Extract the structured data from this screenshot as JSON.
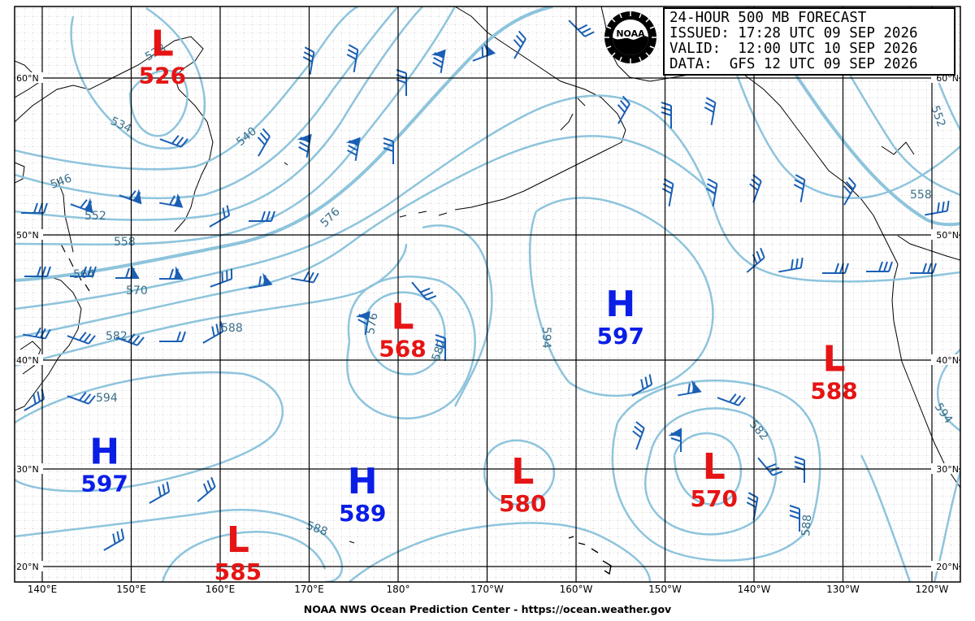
{
  "header": {
    "lines": [
      "24-HOUR 500 MB FORECAST",
      "ISSUED: 17:28 UTC 09 SEP 2026",
      "VALID:  12:00 UTC 10 SEP 2026",
      "DATA:  GFS 12 UTC 09 SEP 2026"
    ]
  },
  "logo": {
    "text": "NOAA"
  },
  "footer": "NOAA NWS Ocean Prediction Center - https://ocean.weather.gov",
  "axes": {
    "lon_labels": [
      "140°E",
      "150°E",
      "160°E",
      "170°E",
      "180°",
      "170°W",
      "160°W",
      "150°W",
      "140°W",
      "130°W",
      "120°W"
    ],
    "lat_labels": [
      "60°N",
      "50°N",
      "40°N",
      "30°N",
      "20°N"
    ]
  },
  "pressure_centers": [
    {
      "type": "L",
      "value": "526",
      "lon": 153.5,
      "lat": 61.5
    },
    {
      "type": "L",
      "value": "568",
      "lon": 180.5,
      "lat": 42.5
    },
    {
      "type": "H",
      "value": "597",
      "lon": -155.0,
      "lat": 43.5
    },
    {
      "type": "L",
      "value": "588",
      "lon": -131.0,
      "lat": 39.0
    },
    {
      "type": "H",
      "value": "597",
      "lon": 147.0,
      "lat": 30.5
    },
    {
      "type": "H",
      "value": "589",
      "lon": 176.0,
      "lat": 27.5
    },
    {
      "type": "L",
      "value": "580",
      "lon": -166.0,
      "lat": 28.5
    },
    {
      "type": "L",
      "value": "570",
      "lon": -144.5,
      "lat": 29.0
    },
    {
      "type": "L",
      "value": "585",
      "lon": 162.0,
      "lat": 21.5
    }
  ],
  "contour_labels": [
    "528",
    "534",
    "540",
    "546",
    "552",
    "558",
    "564",
    "570",
    "576",
    "582",
    "588",
    "594",
    "552",
    "558",
    "576",
    "582",
    "594",
    "582",
    "588",
    "594",
    "588"
  ],
  "colors": {
    "contour": "#8ec4dc",
    "grid": "#000000",
    "minor_grid": "#9a9a9a",
    "coast": "#000000",
    "barb": "#1a5fb4",
    "high": "#0a1ee6",
    "low": "#e61414",
    "label": "#3a6f8a"
  }
}
